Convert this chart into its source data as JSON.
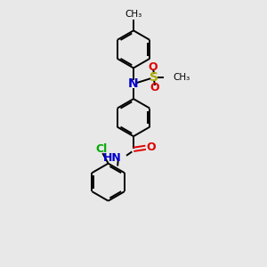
{
  "background_color": "#e8e8e8",
  "bond_color": "#000000",
  "N_color": "#0000cc",
  "O_color": "#dd0000",
  "S_color": "#aaaa00",
  "Cl_color": "#00aa00",
  "line_width": 1.4,
  "fig_width": 3.0,
  "fig_height": 3.0,
  "dpi": 100,
  "xlim": [
    0,
    10
  ],
  "ylim": [
    0,
    14
  ]
}
